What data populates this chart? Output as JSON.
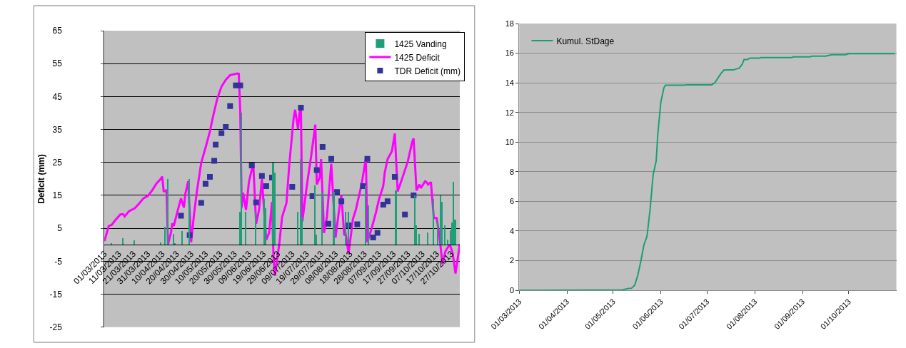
{
  "chart_data": [
    {
      "type": "bar",
      "ylabel": "Deficit (mm)",
      "xlim": [
        "2013-03-01",
        "2013-11-02"
      ],
      "ylim": [
        -25,
        65
      ],
      "yticks": [
        -25,
        -15,
        -5,
        5,
        15,
        25,
        35,
        45,
        55,
        65
      ],
      "grid": "y",
      "legend": "top right",
      "line_style": "solid",
      "xticks": [
        {
          "value": "2013-03-01",
          "label": "01/03/2013"
        },
        {
          "value": "2013-03-11",
          "label": "11/03/2013"
        },
        {
          "value": "2013-03-21",
          "label": "21/03/2013"
        },
        {
          "value": "2013-03-31",
          "label": "31/03/2013"
        },
        {
          "value": "2013-04-10",
          "label": "10/04/2013"
        },
        {
          "value": "2013-04-20",
          "label": "20/04/2013"
        },
        {
          "value": "2013-04-30",
          "label": "30/04/2013"
        },
        {
          "value": "2013-05-10",
          "label": "10/05/2013"
        },
        {
          "value": "2013-05-20",
          "label": "20/05/2013"
        },
        {
          "value": "2013-05-30",
          "label": "30/05/2013"
        },
        {
          "value": "2013-06-09",
          "label": "09/06/2013"
        },
        {
          "value": "2013-06-19",
          "label": "19/06/2013"
        },
        {
          "value": "2013-06-29",
          "label": "29/06/2013"
        },
        {
          "value": "2013-07-09",
          "label": "09/07/2013"
        },
        {
          "value": "2013-07-19",
          "label": "19/07/2013"
        },
        {
          "value": "2013-07-29",
          "label": "29/07/2013"
        },
        {
          "value": "2013-08-08",
          "label": "08/08/2013"
        },
        {
          "value": "2013-08-18",
          "label": "18/08/2013"
        },
        {
          "value": "2013-08-28",
          "label": "28/08/2013"
        },
        {
          "value": "2013-09-07",
          "label": "07/09/2013"
        },
        {
          "value": "2013-09-17",
          "label": "17/09/2013"
        },
        {
          "value": "2013-09-27",
          "label": "27/09/2013"
        },
        {
          "value": "2013-10-07",
          "label": "07/10/2013"
        },
        {
          "value": "2013-10-17",
          "label": "17/10/2013"
        },
        {
          "value": "2013-10-27",
          "label": "27/10/2013"
        }
      ],
      "series": [
        {
          "name": "1425 Vanding",
          "type": "bar",
          "color": "#1f9e78",
          "x": [
            "2013-03-06",
            "2013-03-14",
            "2013-03-22",
            "2013-04-09",
            "2013-04-12",
            "2013-04-14",
            "2013-04-18",
            "2013-04-19",
            "2013-04-24",
            "2013-04-29",
            "2013-06-03",
            "2013-06-04",
            "2013-06-07",
            "2013-06-14",
            "2013-06-20",
            "2013-06-21",
            "2013-06-26",
            "2013-06-27",
            "2013-07-13",
            "2013-07-15",
            "2013-07-16",
            "2013-07-25",
            "2013-07-26",
            "2013-07-30",
            "2013-08-07",
            "2013-08-15",
            "2013-08-17",
            "2013-08-29",
            "2013-08-31",
            "2013-09-19",
            "2013-10-02",
            "2013-10-03",
            "2013-10-05",
            "2013-10-11",
            "2013-10-15",
            "2013-10-18",
            "2013-10-20",
            "2013-10-21",
            "2013-10-23",
            "2013-10-25",
            "2013-10-27",
            "2013-10-28",
            "2013-10-29",
            "2013-10-30"
          ],
          "values": [
            0.4,
            2,
            1.3,
            0.6,
            5.5,
            20,
            3.2,
            0.4,
            4.1,
            20,
            10,
            40,
            10,
            10,
            14,
            11,
            25,
            22,
            10,
            26,
            8.5,
            18,
            3,
            16,
            16,
            10,
            10,
            18,
            12,
            16.5,
            15,
            6,
            3.4,
            3.7,
            14,
            7.4,
            15,
            13,
            6,
            1.6,
            4.3,
            6.7,
            19,
            7.6
          ]
        },
        {
          "name": "1425 Deficit",
          "type": "line",
          "color": "#ff00ff",
          "x": [
            "2013-03-01",
            "2013-03-04",
            "2013-03-06",
            "2013-03-08",
            "2013-03-12",
            "2013-03-14",
            "2013-03-15",
            "2013-03-18",
            "2013-03-22",
            "2013-03-25",
            "2013-03-28",
            "2013-03-31",
            "2013-04-03",
            "2013-04-06",
            "2013-04-09",
            "2013-04-10",
            "2013-04-11",
            "2013-04-12",
            "2013-04-13",
            "2013-04-14",
            "2013-04-16",
            "2013-04-17",
            "2013-04-18",
            "2013-04-20",
            "2013-04-23",
            "2013-04-25",
            "2013-04-26",
            "2013-04-28",
            "2013-04-30",
            "2013-05-02",
            "2013-05-04",
            "2013-05-07",
            "2013-05-10",
            "2013-05-13",
            "2013-05-15",
            "2013-05-18",
            "2013-05-21",
            "2013-05-24",
            "2013-05-27",
            "2013-06-01",
            "2013-06-02",
            "2013-06-03",
            "2013-06-04",
            "2013-06-05",
            "2013-06-07",
            "2013-06-09",
            "2013-06-12",
            "2013-06-14",
            "2013-06-16",
            "2013-06-18",
            "2013-06-21",
            "2013-06-23",
            "2013-06-25",
            "2013-06-26",
            "2013-06-27",
            "2013-06-30",
            "2013-07-02",
            "2013-07-05",
            "2013-07-07",
            "2013-07-10",
            "2013-07-11",
            "2013-07-13",
            "2013-07-14",
            "2013-07-15",
            "2013-07-16",
            "2013-07-19",
            "2013-07-22",
            "2013-07-25",
            "2013-07-26",
            "2013-07-28",
            "2013-07-29",
            "2013-07-31",
            "2013-08-02",
            "2013-08-05",
            "2013-08-08",
            "2013-08-10",
            "2013-08-12",
            "2013-08-14",
            "2013-08-15",
            "2013-08-17",
            "2013-08-20",
            "2013-08-22",
            "2013-08-26",
            "2013-08-29",
            "2013-08-30",
            "2013-09-02",
            "2013-09-05",
            "2013-09-07",
            "2013-09-10",
            "2013-09-11",
            "2013-09-13",
            "2013-09-16",
            "2013-09-18",
            "2013-09-20",
            "2013-09-23",
            "2013-09-27",
            "2013-09-30",
            "2013-10-01",
            "2013-10-03",
            "2013-10-05",
            "2013-10-06",
            "2013-10-09",
            "2013-10-10",
            "2013-10-11",
            "2013-10-13",
            "2013-10-15",
            "2013-10-17",
            "2013-10-19",
            "2013-10-21",
            "2013-10-23",
            "2013-10-26",
            "2013-10-28",
            "2013-10-30",
            "2013-11-02"
          ],
          "values": [
            1.1,
            5.7,
            6,
            7.2,
            9.2,
            9.3,
            8.6,
            10.2,
            11.1,
            12.5,
            14.1,
            14.8,
            16.5,
            18.6,
            20,
            20.7,
            16.3,
            16.2,
            16.7,
            0.1,
            3.6,
            6.5,
            5.7,
            9.2,
            14.1,
            11.3,
            15.5,
            19.3,
            0.8,
            9.2,
            16.2,
            24.9,
            29.5,
            34.4,
            38.6,
            44.2,
            48,
            50.1,
            51.5,
            52,
            51.9,
            40.7,
            11.3,
            15.8,
            10.6,
            19,
            24.9,
            6.4,
            10.6,
            20,
            1.5,
            3.6,
            13,
            -3.4,
            -9.4,
            0.1,
            8.5,
            12.7,
            24.6,
            38.6,
            41,
            35.1,
            40,
            41.4,
            7.1,
            17.6,
            26.7,
            36.5,
            18.3,
            20.4,
            26,
            3.6,
            8.5,
            24.6,
            2.2,
            9.2,
            15.1,
            2.9,
            3.2,
            -2.7,
            7.8,
            10.6,
            18.3,
            26.3,
            0.8,
            5,
            9.9,
            13.7,
            17.9,
            21.8,
            26,
            28.4,
            33.8,
            16.2,
            20,
            25.3,
            31.2,
            32.3,
            16.5,
            18.3,
            17.2,
            19.3,
            19,
            18.3,
            19,
            8.1,
            8.1,
            2.2,
            -5.9,
            -2,
            0.1,
            -2.4,
            -8.7,
            0.2
          ]
        },
        {
          "name": "TDR Deficit (mm)",
          "type": "scatter",
          "marker": "square",
          "color": "#333399",
          "x": [
            "2013-04-23",
            "2013-04-29",
            "2013-05-07",
            "2013-05-10",
            "2013-05-13",
            "2013-05-16",
            "2013-05-17",
            "2013-05-21",
            "2013-05-24",
            "2013-05-27",
            "2013-05-31",
            "2013-06-03",
            "2013-06-11",
            "2013-06-14",
            "2013-06-18",
            "2013-06-21",
            "2013-06-25",
            "2013-07-09",
            "2013-07-15",
            "2013-07-23",
            "2013-07-26",
            "2013-07-30",
            "2013-08-03",
            "2013-08-05",
            "2013-08-09",
            "2013-08-12",
            "2013-08-17",
            "2013-08-23",
            "2013-08-27",
            "2013-08-30",
            "2013-09-03",
            "2013-09-06",
            "2013-09-10",
            "2013-09-13",
            "2013-09-18",
            "2013-09-25",
            "2013-10-01"
          ],
          "values": [
            8.8,
            2.9,
            12.7,
            18.5,
            20.6,
            25.5,
            30.4,
            33.9,
            35.8,
            42.1,
            48.4,
            48.4,
            24.1,
            12.9,
            20.9,
            17.8,
            20.4,
            17.6,
            41.6,
            14.8,
            22.7,
            29.7,
            6.4,
            26.1,
            16,
            13.2,
            5.9,
            6.2,
            17.8,
            26.1,
            2.2,
            3.6,
            12.2,
            13.2,
            20.6,
            9.2,
            15
          ]
        }
      ]
    },
    {
      "type": "line",
      "xlim": [
        "2013-03-01",
        "2013-11-01"
      ],
      "ylim": [
        0,
        18
      ],
      "yticks": [
        0,
        2,
        4,
        6,
        8,
        10,
        12,
        14,
        16,
        18
      ],
      "grid": "y",
      "legend": "top left",
      "line_style": "solid",
      "xticks": [
        {
          "value": "2013-03-01",
          "label": "01/03/2013"
        },
        {
          "value": "2013-04-01",
          "label": "01/04/2013"
        },
        {
          "value": "2013-05-01",
          "label": "01/05/2013"
        },
        {
          "value": "2013-06-01",
          "label": "01/06/2013"
        },
        {
          "value": "2013-07-01",
          "label": "01/07/2013"
        },
        {
          "value": "2013-08-01",
          "label": "01/08/2013"
        },
        {
          "value": "2013-09-01",
          "label": "01/09/2013"
        },
        {
          "value": "2013-10-01",
          "label": "01/10/2013"
        }
      ],
      "series": [
        {
          "name": "Kumul. StDage",
          "color": "#1a9e77",
          "x": [
            "2013-03-01",
            "2013-05-07",
            "2013-05-11",
            "2013-05-13",
            "2013-05-15",
            "2013-05-17",
            "2013-05-19",
            "2013-05-21",
            "2013-05-23",
            "2013-05-25",
            "2013-05-27",
            "2013-05-29",
            "2013-05-30",
            "2013-06-01",
            "2013-06-03",
            "2013-06-04",
            "2013-06-16",
            "2013-06-18",
            "2013-07-04",
            "2013-07-06",
            "2013-07-10",
            "2013-07-12",
            "2013-07-14",
            "2013-07-18",
            "2013-07-22",
            "2013-07-24",
            "2013-07-25",
            "2013-07-27",
            "2013-07-29",
            "2013-08-04",
            "2013-08-05",
            "2013-08-25",
            "2013-08-26",
            "2013-09-06",
            "2013-09-07",
            "2013-09-16",
            "2013-09-20",
            "2013-09-29",
            "2013-10-01",
            "2013-10-31"
          ],
          "values": [
            0,
            0.03,
            0.12,
            0.14,
            0.34,
            1,
            1.95,
            3.06,
            3.63,
            5.43,
            7.8,
            8.74,
            10.5,
            12.7,
            13.67,
            13.84,
            13.84,
            13.87,
            13.87,
            14,
            14.63,
            14.86,
            14.87,
            14.87,
            15,
            15.28,
            15.57,
            15.57,
            15.67,
            15.67,
            15.7,
            15.7,
            15.75,
            15.75,
            15.8,
            15.8,
            15.9,
            15.9,
            15.97,
            15.97
          ]
        }
      ]
    }
  ]
}
